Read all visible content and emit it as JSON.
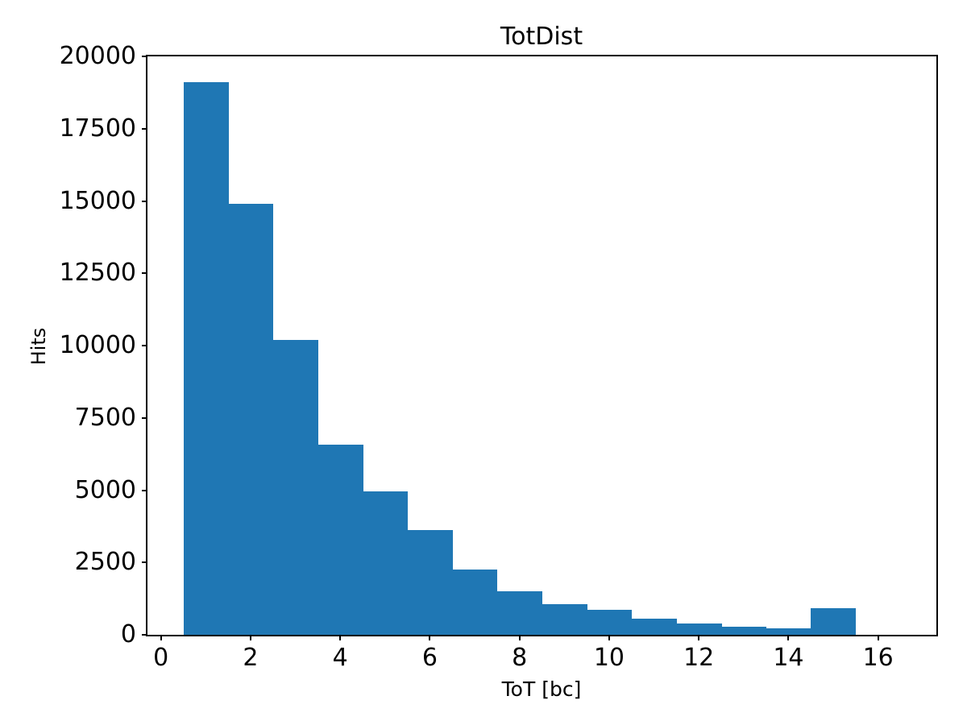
{
  "chart_data": {
    "type": "bar",
    "title": "TotDist",
    "xlabel": "ToT [bc]",
    "ylabel": "Hits",
    "bar_color": "#1f77b4",
    "background_color": "#ffffff",
    "bin_edges": [
      0.5,
      1.5,
      2.5,
      3.5,
      4.5,
      5.5,
      6.5,
      7.5,
      8.5,
      9.5,
      10.5,
      11.5,
      12.5,
      13.5,
      14.5,
      15.5,
      16.5
    ],
    "values": [
      19100,
      14900,
      10200,
      6570,
      4950,
      3630,
      2250,
      1510,
      1050,
      870,
      560,
      390,
      270,
      230,
      910,
      0
    ],
    "xlim": [
      -0.3,
      17.3
    ],
    "ylim": [
      0,
      20000
    ],
    "xticks": [
      0,
      2,
      4,
      6,
      8,
      10,
      12,
      14,
      16
    ],
    "yticks": [
      0,
      2500,
      5000,
      7500,
      10000,
      12500,
      15000,
      17500,
      20000
    ],
    "grid": false,
    "legend": false
  }
}
